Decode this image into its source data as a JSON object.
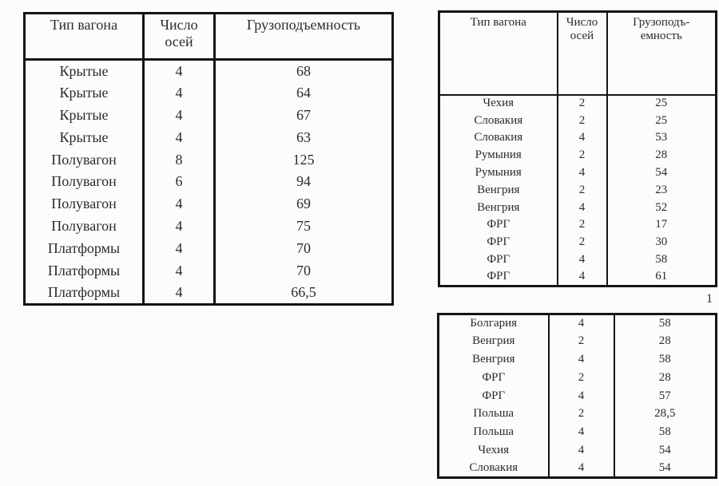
{
  "page": {
    "marker": "1"
  },
  "colors": {
    "background": "#fcfcfc",
    "border": "#141414",
    "text": "#2b2b2e"
  },
  "left_table": {
    "headers": [
      "Тип вагона",
      "Число\nосей",
      "Грузоподъемность"
    ],
    "rows": [
      [
        "Крытые",
        "4",
        "68"
      ],
      [
        "Крытые",
        "4",
        "64"
      ],
      [
        "Крытые",
        "4",
        "67"
      ],
      [
        "Крытые",
        "4",
        "63"
      ],
      [
        "Полувагон",
        "8",
        "125"
      ],
      [
        "Полувагон",
        "6",
        "94"
      ],
      [
        "Полувагон",
        "4",
        "69"
      ],
      [
        "Полувагон",
        "4",
        "75"
      ],
      [
        "Платформы",
        "4",
        "70"
      ],
      [
        "Платформы",
        "4",
        "70"
      ],
      [
        "Платформы",
        "4",
        "66,5"
      ]
    ]
  },
  "right_top_table": {
    "headers": [
      "Тип вагона",
      "Число\nосей",
      "Грузоподъ-\nемность"
    ],
    "rows": [
      [
        "Чехия",
        "2",
        "25"
      ],
      [
        "Словакия",
        "2",
        "25"
      ],
      [
        "Словакия",
        "4",
        "53"
      ],
      [
        "Румыния",
        "2",
        "28"
      ],
      [
        "Румыния",
        "4",
        "54"
      ],
      [
        "Венгрия",
        "2",
        "23"
      ],
      [
        "Венгрия",
        "4",
        "52"
      ],
      [
        "ФРГ",
        "2",
        "17"
      ],
      [
        "ФРГ",
        "2",
        "30"
      ],
      [
        "ФРГ",
        "4",
        "58"
      ],
      [
        "ФРГ",
        "4",
        "61"
      ]
    ]
  },
  "right_bottom_table": {
    "rows": [
      [
        "Болгария",
        "4",
        "58"
      ],
      [
        "Венгрия",
        "2",
        "28"
      ],
      [
        "Венгрия",
        "4",
        "58"
      ],
      [
        "ФРГ",
        "2",
        "28"
      ],
      [
        "ФРГ",
        "4",
        "57"
      ],
      [
        "Польша",
        "2",
        "28,5"
      ],
      [
        "Польша",
        "4",
        "58"
      ],
      [
        "Чехия",
        "4",
        "54"
      ],
      [
        "Словакия",
        "4",
        "54"
      ]
    ]
  }
}
